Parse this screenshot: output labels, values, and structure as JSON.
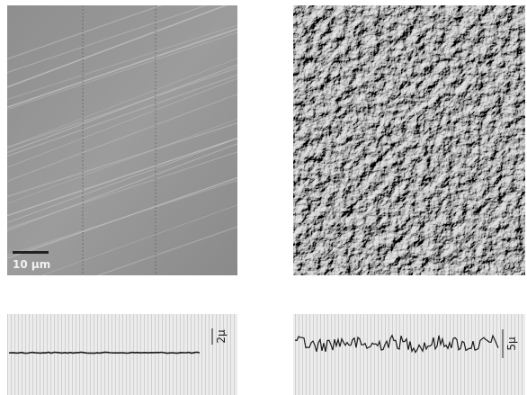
{
  "figure": {
    "scale_bar_label": "10 µm",
    "left_trace_scale": "2µ",
    "right_trace_scale": "5µ"
  }
}
